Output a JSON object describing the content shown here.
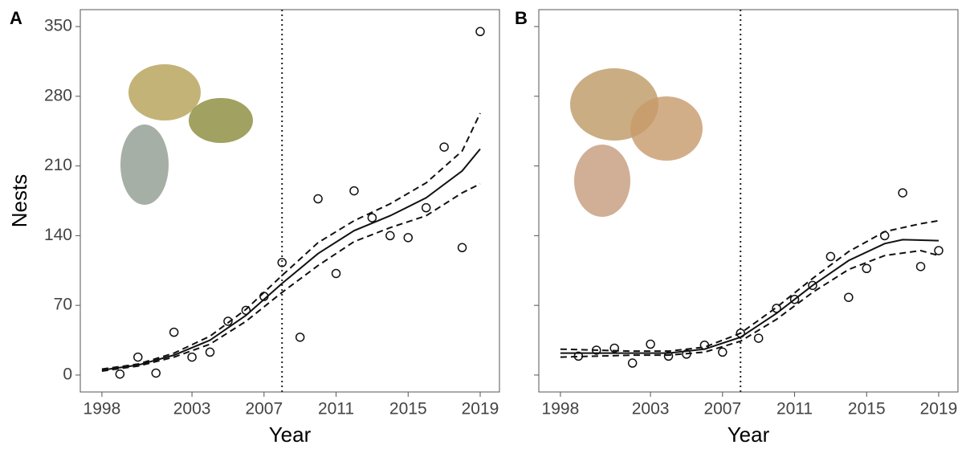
{
  "chart_data": [
    {
      "type": "scatter",
      "panel_label": "A",
      "xlabel": "Year",
      "ylabel": "Nests",
      "xlim": [
        1996.8,
        2020.07
      ],
      "ylim": [
        -17,
        367
      ],
      "xticks": [
        1998,
        2003,
        2007,
        2011,
        2015,
        2019
      ],
      "yticks": [
        0,
        70,
        140,
        210,
        280,
        350
      ],
      "show_ytick_labels": true,
      "vline": 2008,
      "color": "#111111",
      "series": [
        {
          "style": "points",
          "x": [
            1999,
            2000,
            2001,
            2002,
            2003,
            2004,
            2005,
            2006,
            2007,
            2008,
            2009,
            2010,
            2011,
            2012,
            2013,
            2014,
            2015,
            2016,
            2017,
            2018,
            2019
          ],
          "values": [
            1,
            18,
            2,
            43,
            18,
            23,
            54,
            65,
            79,
            113,
            38,
            177,
            102,
            185,
            158,
            140,
            138,
            168,
            229,
            128,
            345
          ]
        },
        {
          "style": "solid",
          "x": [
            1998,
            2000,
            2002,
            2004,
            2006,
            2008,
            2010,
            2012,
            2014,
            2016,
            2018,
            2019
          ],
          "values": [
            5,
            10,
            20,
            35,
            60,
            92,
            122,
            145,
            160,
            178,
            205,
            227
          ]
        },
        {
          "style": "dashed",
          "x": [
            1998,
            2000,
            2002,
            2004,
            2006,
            2008,
            2010,
            2012,
            2014,
            2016,
            2018,
            2019
          ],
          "values": [
            6,
            11,
            22,
            39,
            66,
            100,
            133,
            155,
            172,
            193,
            225,
            263
          ]
        },
        {
          "style": "dashed",
          "x": [
            1998,
            2000,
            2002,
            2004,
            2006,
            2008,
            2010,
            2012,
            2014,
            2016,
            2018,
            2019
          ],
          "values": [
            4,
            9,
            18,
            31,
            54,
            83,
            110,
            134,
            148,
            160,
            183,
            192
          ]
        }
      ]
    },
    {
      "type": "scatter",
      "panel_label": "B",
      "xlabel": "Year",
      "xlim": [
        1996.8,
        2020.07
      ],
      "ylim": [
        -17,
        367
      ],
      "xticks": [
        1998,
        2003,
        2007,
        2011,
        2015,
        2019
      ],
      "yticks": [
        0,
        70,
        140,
        210,
        280,
        350
      ],
      "show_ytick_labels": false,
      "vline": 2008,
      "color": "#111111",
      "series": [
        {
          "style": "points",
          "x": [
            1999,
            2000,
            2001,
            2002,
            2003,
            2004,
            2005,
            2006,
            2007,
            2008,
            2009,
            2010,
            2011,
            2012,
            2013,
            2014,
            2015,
            2016,
            2017,
            2018,
            2019
          ],
          "values": [
            19,
            25,
            27,
            12,
            31,
            19,
            21,
            30,
            23,
            42,
            37,
            67,
            76,
            90,
            119,
            78,
            107,
            140,
            183,
            109,
            125
          ]
        },
        {
          "style": "solid",
          "x": [
            1998,
            2000,
            2002,
            2004,
            2006,
            2008,
            2010,
            2012,
            2014,
            2016,
            2017,
            2019
          ],
          "values": [
            22,
            22,
            22,
            22,
            26,
            38,
            62,
            90,
            115,
            132,
            136,
            135
          ]
        },
        {
          "style": "dashed",
          "x": [
            1998,
            2000,
            2002,
            2004,
            2006,
            2008,
            2010,
            2012,
            2014,
            2016,
            2018,
            2019
          ],
          "values": [
            26,
            25,
            24,
            24,
            28,
            42,
            68,
            97,
            124,
            144,
            152,
            155
          ]
        },
        {
          "style": "dashed",
          "x": [
            1998,
            2000,
            2002,
            2004,
            2006,
            2008,
            2010,
            2012,
            2014,
            2016,
            2018,
            2019
          ],
          "values": [
            18,
            19,
            20,
            20,
            23,
            34,
            56,
            83,
            106,
            120,
            125,
            120
          ]
        }
      ]
    }
  ]
}
